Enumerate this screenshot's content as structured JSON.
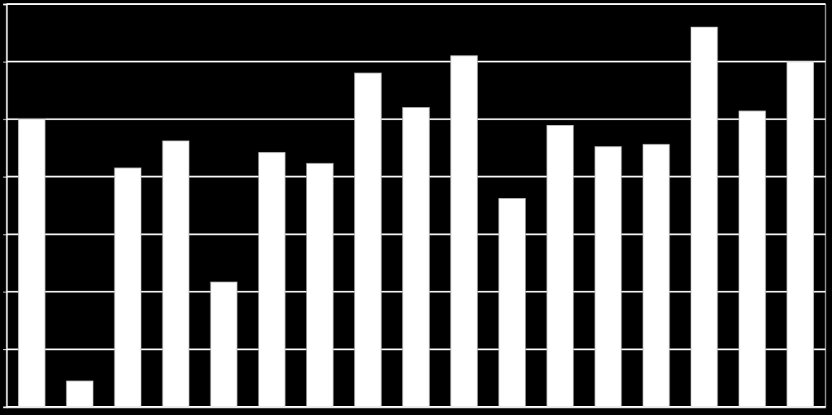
{
  "chart_data": {
    "type": "bar",
    "categories": [
      null,
      null,
      null,
      null,
      null,
      null,
      null,
      null,
      null,
      null,
      null,
      null,
      null,
      null,
      null,
      null,
      null
    ],
    "values": [
      5.0,
      0.45,
      4.15,
      4.62,
      2.17,
      4.42,
      4.23,
      5.8,
      5.2,
      6.1,
      3.62,
      4.89,
      4.52,
      4.56,
      6.6,
      5.14,
      6.0
    ],
    "color": "#ffffff",
    "ylim": [
      0,
      7
    ],
    "yticks": [
      0,
      1,
      2,
      3,
      4,
      5,
      6,
      7
    ],
    "grid": true,
    "tick_labels": false
  }
}
